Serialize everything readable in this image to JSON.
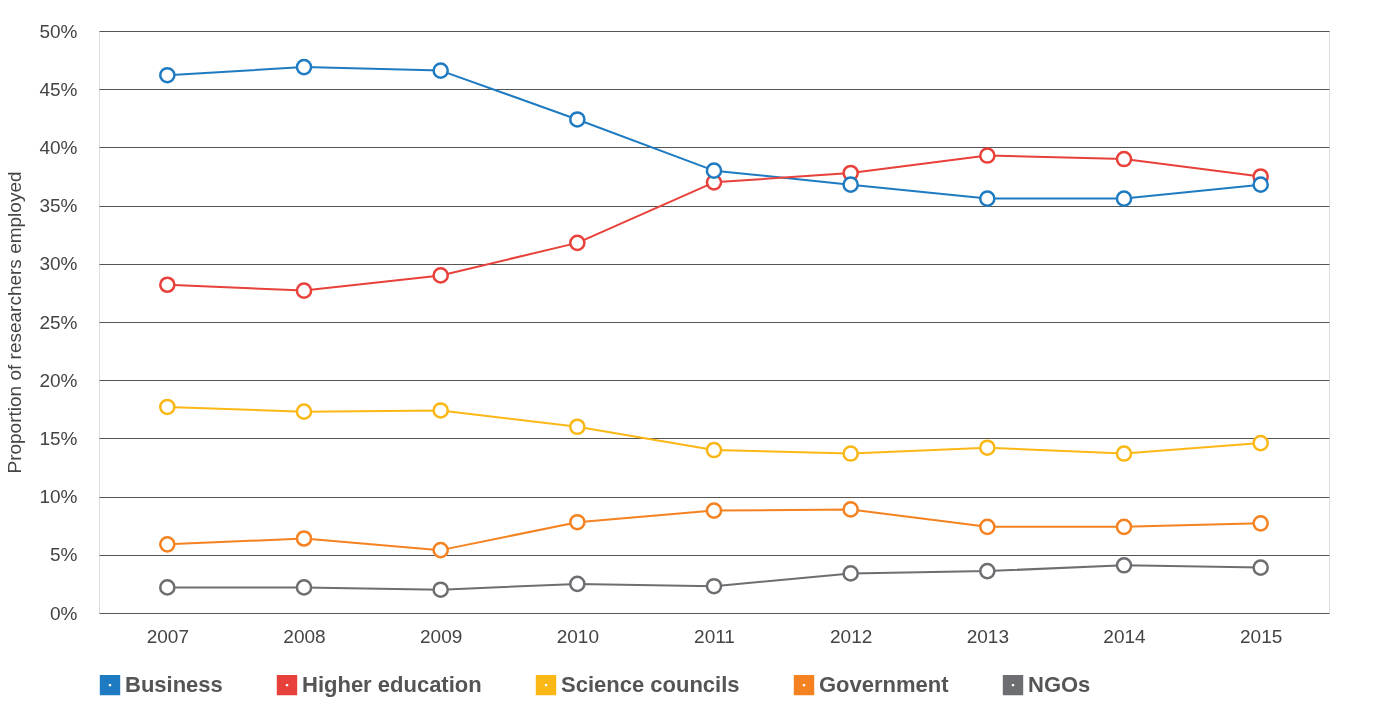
{
  "chart_data": {
    "type": "line",
    "ylabel": "Proportion of researchers employed",
    "categories": [
      "2007",
      "2008",
      "2009",
      "2010",
      "2011",
      "2012",
      "2013",
      "2014",
      "2015"
    ],
    "series": [
      {
        "name": "Business",
        "color": "#1f7bc1",
        "values": [
          46.2,
          46.9,
          46.6,
          42.4,
          38.0,
          36.8,
          35.6,
          35.6,
          36.8
        ]
      },
      {
        "name": "Higher education",
        "color": "#e8403a",
        "values": [
          28.2,
          27.7,
          29.0,
          31.8,
          37.0,
          37.8,
          39.3,
          39.0,
          37.5
        ]
      },
      {
        "name": "Science councils",
        "color": "#fbb716",
        "values": [
          17.7,
          17.3,
          17.4,
          16.0,
          14.0,
          13.7,
          14.2,
          13.7,
          14.6
        ]
      },
      {
        "name": "Government",
        "color": "#f58220",
        "values": [
          5.9,
          6.4,
          5.4,
          7.8,
          8.8,
          8.9,
          7.4,
          7.4,
          7.7
        ]
      },
      {
        "name": "NGOs",
        "color": "#6d6e71",
        "values": [
          2.2,
          2.2,
          2.0,
          2.5,
          2.3,
          3.4,
          3.6,
          4.1,
          3.9
        ]
      }
    ],
    "ylim": [
      0,
      50
    ],
    "yticks": [
      {
        "value": 0,
        "label": "0%"
      },
      {
        "value": 5,
        "label": "5%"
      },
      {
        "value": 10,
        "label": "10%"
      },
      {
        "value": 15,
        "label": "15%"
      },
      {
        "value": 20,
        "label": "20%"
      },
      {
        "value": 25,
        "label": "25%"
      },
      {
        "value": 30,
        "label": "30%"
      },
      {
        "value": 35,
        "label": "35%"
      },
      {
        "value": 40,
        "label": "40%"
      },
      {
        "value": 45,
        "label": "45%"
      },
      {
        "value": 50,
        "label": "50%"
      }
    ],
    "grid": "y",
    "legend": "bottom",
    "marker": "circle",
    "line_style": "solid"
  }
}
